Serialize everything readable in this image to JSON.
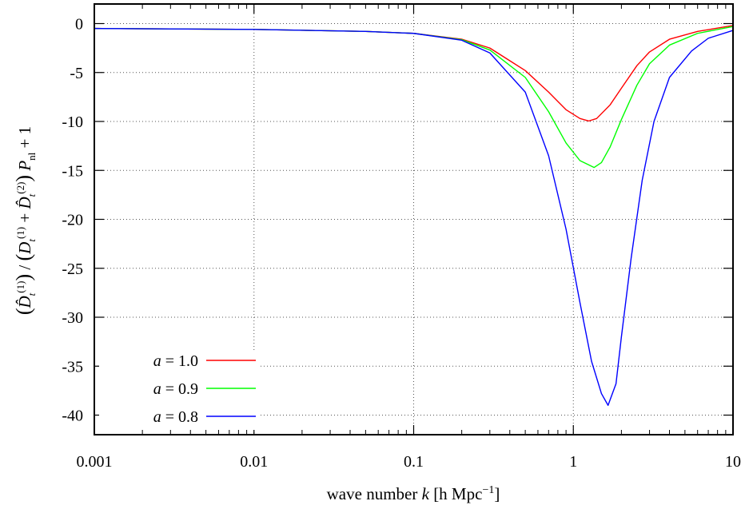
{
  "chart_data": {
    "type": "line",
    "xlabel": "wave number k [h Mpc⁻¹]",
    "ylabel": "(D̂t(1)) / (Dt(1) + D̂t(2)) Pnl + 1",
    "x_scale": "log",
    "xlim": [
      0.001,
      10
    ],
    "ylim": [
      -42,
      2
    ],
    "x_ticks": [
      0.001,
      0.01,
      0.1,
      1,
      10
    ],
    "x_tick_labels": [
      "0.001",
      "0.01",
      "0.1",
      "1",
      "10"
    ],
    "y_ticks": [
      0,
      -5,
      -10,
      -15,
      -20,
      -25,
      -30,
      -35,
      -40
    ],
    "y_tick_labels": [
      "0",
      "-5",
      "-10",
      "-15",
      "-20",
      "-25",
      "-30",
      "-35",
      "-40"
    ],
    "grid": true,
    "legend_position": "bottom-left",
    "series": [
      {
        "name": "a = 1.0",
        "color": "#ff0000",
        "points": [
          [
            0.001,
            -0.5
          ],
          [
            0.01,
            -0.6
          ],
          [
            0.05,
            -0.8
          ],
          [
            0.1,
            -1.0
          ],
          [
            0.2,
            -1.6
          ],
          [
            0.3,
            -2.5
          ],
          [
            0.5,
            -4.8
          ],
          [
            0.7,
            -7.0
          ],
          [
            0.9,
            -8.8
          ],
          [
            1.1,
            -9.7
          ],
          [
            1.25,
            -9.95
          ],
          [
            1.4,
            -9.7
          ],
          [
            1.7,
            -8.3
          ],
          [
            2.0,
            -6.6
          ],
          [
            2.5,
            -4.3
          ],
          [
            3.0,
            -2.9
          ],
          [
            4.0,
            -1.6
          ],
          [
            6.0,
            -0.8
          ],
          [
            10,
            -0.2
          ]
        ]
      },
      {
        "name": "a = 0.9",
        "color": "#00ff00",
        "points": [
          [
            0.001,
            -0.5
          ],
          [
            0.01,
            -0.6
          ],
          [
            0.05,
            -0.8
          ],
          [
            0.1,
            -1.0
          ],
          [
            0.2,
            -1.65
          ],
          [
            0.3,
            -2.7
          ],
          [
            0.5,
            -5.5
          ],
          [
            0.7,
            -9.0
          ],
          [
            0.9,
            -12.2
          ],
          [
            1.1,
            -14.0
          ],
          [
            1.35,
            -14.7
          ],
          [
            1.5,
            -14.2
          ],
          [
            1.7,
            -12.6
          ],
          [
            2.0,
            -9.8
          ],
          [
            2.5,
            -6.3
          ],
          [
            3.0,
            -4.1
          ],
          [
            4.0,
            -2.2
          ],
          [
            6.0,
            -1.0
          ],
          [
            10,
            -0.3
          ]
        ]
      },
      {
        "name": "a = 0.8",
        "color": "#0000ff",
        "points": [
          [
            0.001,
            -0.5
          ],
          [
            0.01,
            -0.6
          ],
          [
            0.05,
            -0.8
          ],
          [
            0.1,
            -1.0
          ],
          [
            0.2,
            -1.7
          ],
          [
            0.3,
            -3.0
          ],
          [
            0.5,
            -7.0
          ],
          [
            0.7,
            -13.5
          ],
          [
            0.9,
            -21.0
          ],
          [
            1.1,
            -28.5
          ],
          [
            1.3,
            -34.5
          ],
          [
            1.5,
            -37.8
          ],
          [
            1.65,
            -39.0
          ],
          [
            1.85,
            -36.8
          ],
          [
            2.0,
            -32.0
          ],
          [
            2.3,
            -24.0
          ],
          [
            2.7,
            -16.0
          ],
          [
            3.2,
            -10.0
          ],
          [
            4.0,
            -5.5
          ],
          [
            5.5,
            -2.8
          ],
          [
            7.0,
            -1.5
          ],
          [
            10,
            -0.7
          ]
        ]
      }
    ]
  }
}
